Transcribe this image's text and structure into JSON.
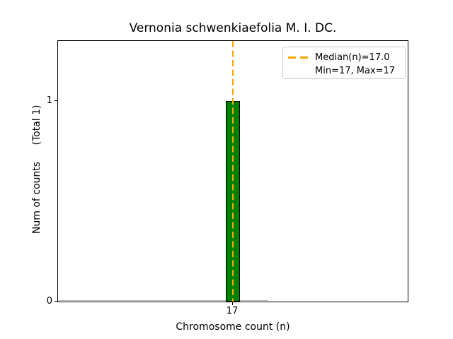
{
  "figure": {
    "title": "Vernonia schwenkiaefolia M. I. DC."
  },
  "chart_data": {
    "type": "bar",
    "subtype": "histogram",
    "title": "Vernonia schwenkiaefolia M. I. DC.",
    "xlabel": "Chromosome count (n)",
    "ylabel": "Num of counts",
    "ylabel_annotation": "(Total 1)",
    "x": [
      17
    ],
    "values": [
      1
    ],
    "total_counts": 1,
    "xtick_labels": [
      "17"
    ],
    "ytick_labels": [
      "0",
      "1"
    ],
    "ylim": [
      0,
      1.3
    ],
    "grid": false,
    "legend_position": "upper right",
    "statistics": {
      "median_n": 17.0,
      "min": 17,
      "max": 17
    },
    "median_line": {
      "x": 17,
      "style": "dashed",
      "orientation": "vertical"
    }
  },
  "axes": {
    "xlabel": "Chromosome count (n)",
    "ylabel_main": "Num of counts",
    "ylabel_note": "(Total 1)",
    "xtick_labels": [
      "17"
    ],
    "ytick_labels": [
      "0",
      "1"
    ]
  },
  "legend": {
    "line1": "Median(n)=17.0",
    "line2": "Min=17, Max=17"
  },
  "colors": {
    "bar_fill": "#008000",
    "bar_edge": "#000000",
    "median": "#ffa500",
    "legend_border": "#cccccc",
    "spine": "#000000",
    "baseline_stub": "#b9b9b9",
    "text": "#000000"
  }
}
